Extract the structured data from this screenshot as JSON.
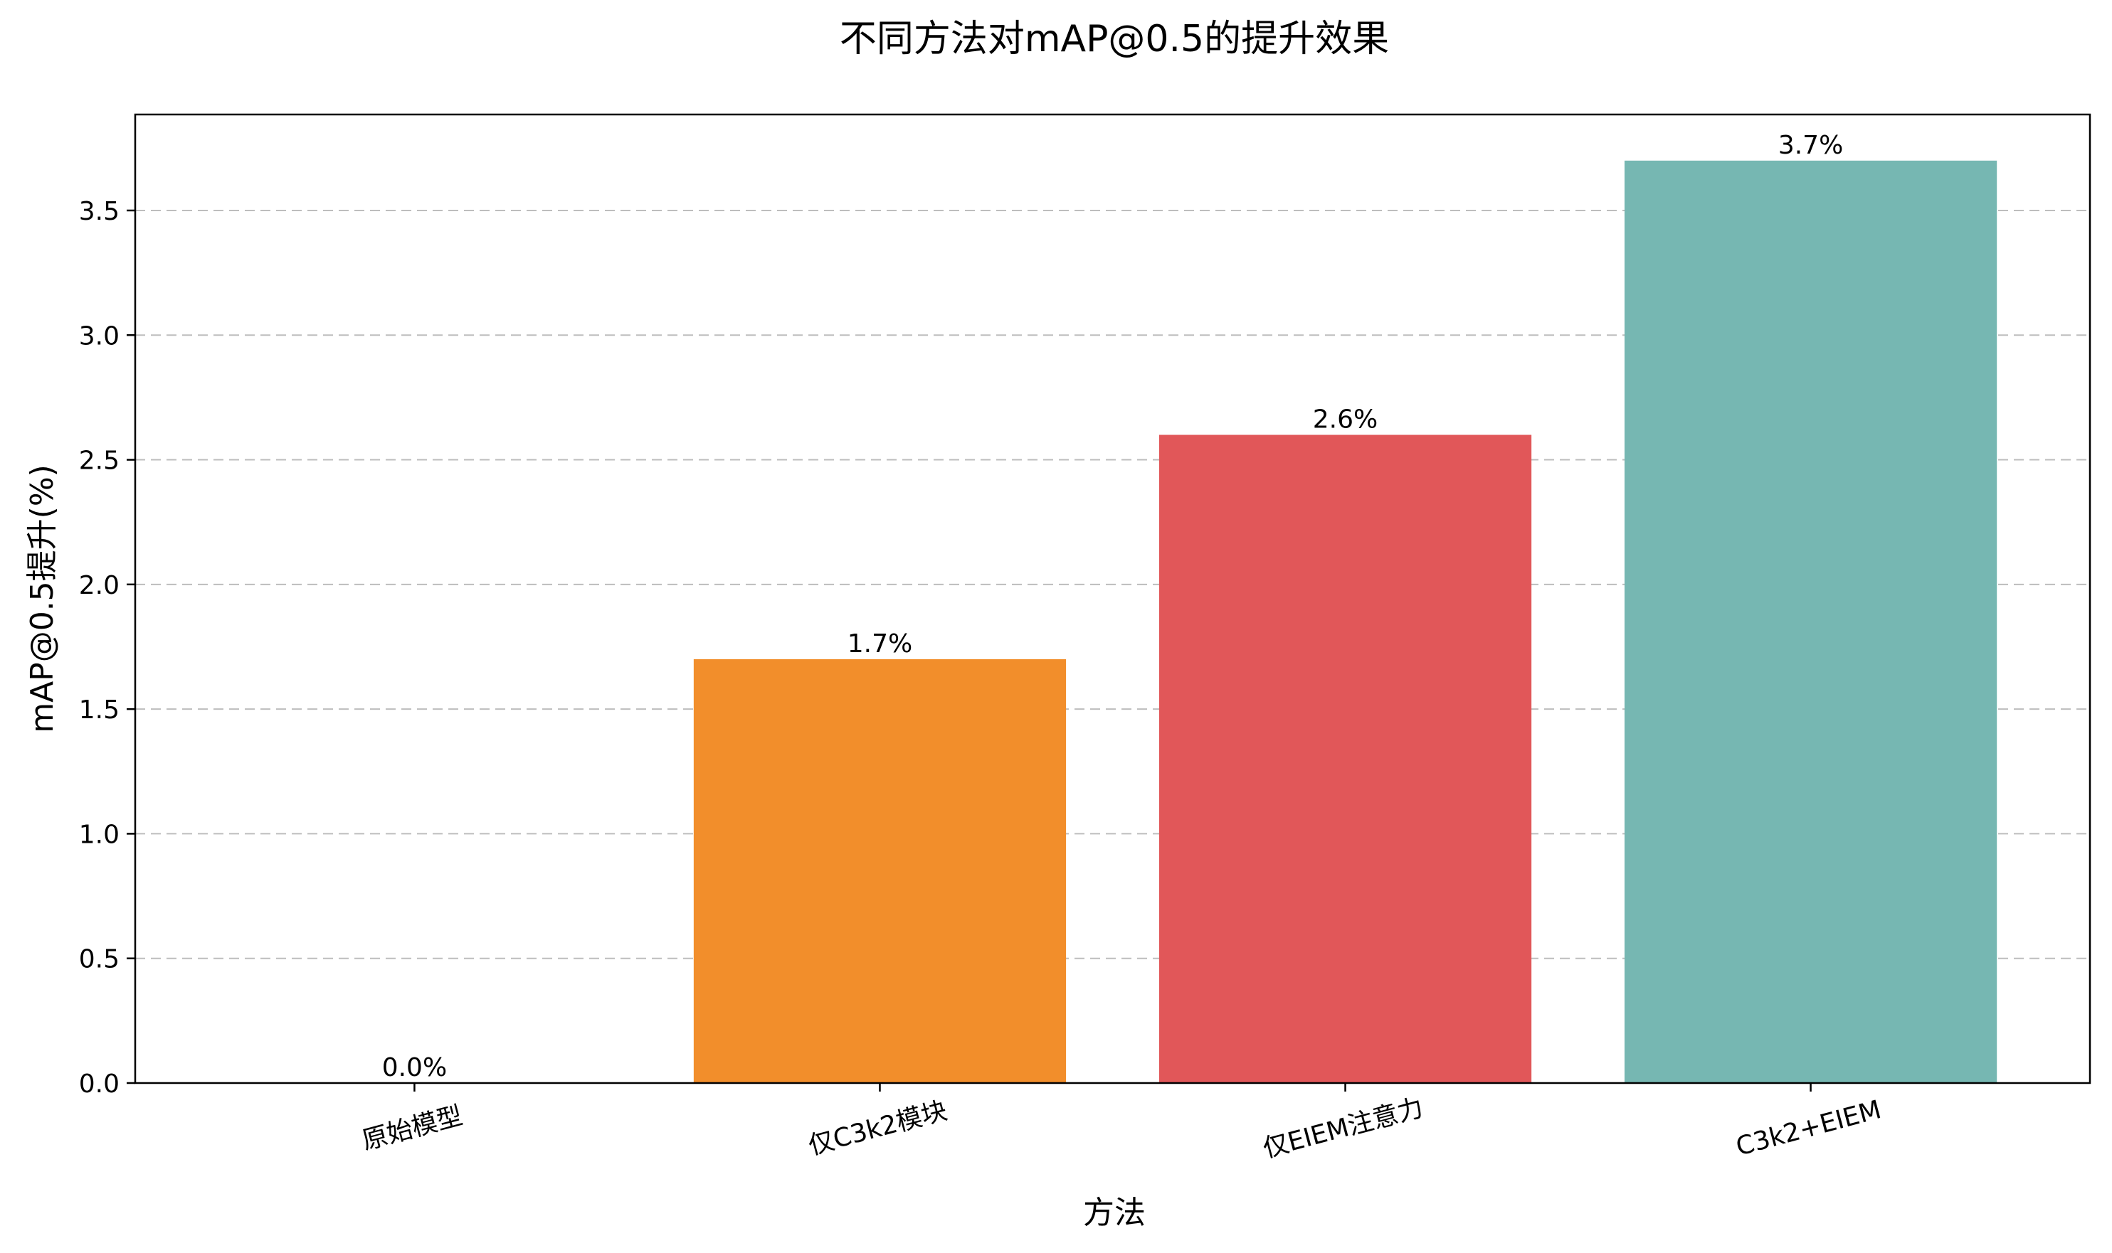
{
  "chart_data": {
    "type": "bar",
    "title": "不同方法对mAP@0.5的提升效果",
    "xlabel": "方法",
    "ylabel": "mAP@0.5提升(%)",
    "categories": [
      "原始模型",
      "仅C3k2模块",
      "仅EIEM注意力",
      "C3k2+EIEM"
    ],
    "values": [
      0.0,
      1.7,
      2.6,
      3.7
    ],
    "data_labels": [
      "0.0%",
      "1.7%",
      "2.6%",
      "3.7%"
    ],
    "colors": [
      "#f28e2b",
      "#f28e2b",
      "#e15759",
      "#76b7b2"
    ],
    "ylim": [
      0,
      3.885
    ],
    "yticks": [
      0.0,
      0.5,
      1.0,
      1.5,
      2.0,
      2.5,
      3.0,
      3.5
    ],
    "ytick_labels": [
      "0.0",
      "0.5",
      "1.0",
      "1.5",
      "2.0",
      "2.5",
      "3.0",
      "3.5"
    ],
    "grid": "y-dashed",
    "legend": "none"
  }
}
